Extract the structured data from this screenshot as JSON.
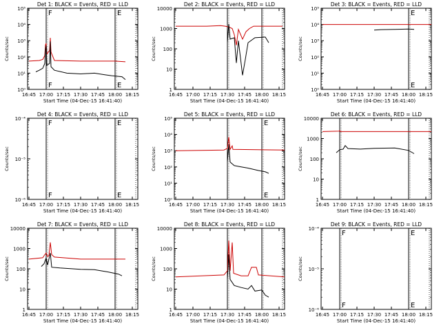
{
  "figure": {
    "xaxis_title": "Start Time (04-Dec-15 16:41:40)",
    "yaxis_title": "Counts/sec",
    "xticks": [
      "16:45",
      "17:00",
      "17:15",
      "17:30",
      "17:45",
      "18:00",
      "18:15"
    ],
    "colors": {
      "events": "#000000",
      "lld": "#cc0000",
      "axis": "#000000"
    }
  },
  "chart_data": [
    {
      "type": "line",
      "title": "Det 1: BLACK = Events, RED = LLD",
      "ylog": true,
      "ylim_exp": [
        0,
        5
      ],
      "yticklabels": [
        "10⁰",
        "10¹",
        "10²",
        "10³",
        "10⁴",
        "10⁵"
      ],
      "xlim": [
        16.73,
        18.33
      ],
      "markers": [
        {
          "x": 17.0,
          "label": "F"
        },
        {
          "x": 18.0,
          "label": "E"
        }
      ],
      "dotted_lines": [
        18.3
      ],
      "series": [
        {
          "color": "red",
          "points": [
            [
              16.75,
              55
            ],
            [
              16.9,
              60
            ],
            [
              16.95,
              70
            ],
            [
              16.98,
              120
            ],
            [
              16.99,
              550
            ],
            [
              17.0,
              700
            ],
            [
              17.01,
              150
            ],
            [
              17.05,
              250
            ],
            [
              17.06,
              1500
            ],
            [
              17.07,
              200
            ],
            [
              17.12,
              60
            ],
            [
              17.5,
              55
            ],
            [
              18.0,
              55
            ],
            [
              18.15,
              50
            ]
          ]
        },
        {
          "color": "black",
          "points": [
            [
              16.85,
              12
            ],
            [
              16.9,
              15
            ],
            [
              16.95,
              20
            ],
            [
              16.98,
              40
            ],
            [
              16.99,
              300
            ],
            [
              17.0,
              500
            ],
            [
              17.01,
              30
            ],
            [
              17.05,
              40
            ],
            [
              17.06,
              900
            ],
            [
              17.07,
              25
            ],
            [
              17.12,
              15
            ],
            [
              17.3,
              10
            ],
            [
              17.5,
              9
            ],
            [
              17.7,
              10
            ],
            [
              17.85,
              8
            ],
            [
              17.95,
              7
            ],
            [
              18.1,
              6
            ],
            [
              18.15,
              4
            ]
          ]
        }
      ]
    },
    {
      "type": "line",
      "title": "Det 2: BLACK = Events, RED = LLD",
      "ylog": true,
      "ylim_exp": [
        0,
        4
      ],
      "yticklabels": [
        "1",
        "10",
        "100",
        "1000",
        "10000"
      ],
      "xlim": [
        16.73,
        18.33
      ],
      "markers": [
        {
          "x": 17.5,
          "label": ""
        },
        {
          "x": 18.0,
          "label": ""
        }
      ],
      "dotted_lines": [
        18.3
      ],
      "series": [
        {
          "color": "red",
          "points": [
            [
              16.75,
              1300
            ],
            [
              17.2,
              1300
            ],
            [
              17.4,
              1400
            ],
            [
              17.47,
              1300
            ],
            [
              17.52,
              1200
            ],
            [
              17.57,
              1000
            ],
            [
              17.6,
              500
            ],
            [
              17.63,
              150
            ],
            [
              17.66,
              900
            ],
            [
              17.72,
              300
            ],
            [
              17.77,
              700
            ],
            [
              17.82,
              1000
            ],
            [
              17.88,
              1300
            ],
            [
              18.3,
              1300
            ]
          ]
        },
        {
          "color": "black",
          "points": [
            [
              17.5,
              200
            ],
            [
              17.52,
              1700
            ],
            [
              17.54,
              300
            ],
            [
              17.6,
              350
            ],
            [
              17.63,
              20
            ],
            [
              17.66,
              250
            ],
            [
              17.72,
              5
            ],
            [
              17.76,
              30
            ],
            [
              17.8,
              200
            ],
            [
              17.9,
              350
            ],
            [
              18.05,
              380
            ],
            [
              18.1,
              200
            ]
          ]
        }
      ]
    },
    {
      "type": "line",
      "title": "Det 3: BLACK = Events, RED = LLD",
      "ylog": true,
      "ylim_exp": [
        0,
        5
      ],
      "yticklabels": [
        "10⁰",
        "10¹",
        "10²",
        "10³",
        "10⁴",
        "10⁵"
      ],
      "xlim": [
        16.73,
        18.33
      ],
      "markers": [
        {
          "x": 18.0,
          "label": "E"
        }
      ],
      "dotted_lines": [
        18.3
      ],
      "series": [
        {
          "color": "red",
          "points": [
            [
              16.75,
              10000
            ],
            [
              18.33,
              10000
            ]
          ]
        },
        {
          "color": "black",
          "points": [
            [
              17.5,
              4500
            ],
            [
              17.6,
              4800
            ],
            [
              17.8,
              5000
            ],
            [
              18.0,
              5200
            ],
            [
              18.08,
              5000
            ]
          ]
        }
      ]
    },
    {
      "type": "line",
      "title": "Det 4: BLACK = Events, RED = LLD",
      "ylog": true,
      "ylim_exp": [
        -6,
        -4
      ],
      "yticklabels": [
        "10⁻⁶",
        "10⁻⁵",
        "10⁻⁴"
      ],
      "xlim": [
        16.73,
        18.33
      ],
      "markers": [
        {
          "x": 17.0,
          "label": "F"
        },
        {
          "x": 18.0,
          "label": "E"
        }
      ],
      "dotted_lines": [
        18.3
      ],
      "series": []
    },
    {
      "type": "line",
      "title": "Det 5: BLACK = Events, RED = LLD",
      "ylog": true,
      "ylim_exp": [
        0,
        5
      ],
      "yticklabels": [
        "10⁰",
        "10¹",
        "10²",
        "10³",
        "10⁴",
        "10⁵"
      ],
      "xlim": [
        16.73,
        18.33
      ],
      "markers": [
        {
          "x": 17.5,
          "label": ""
        },
        {
          "x": 18.0,
          "label": "E"
        }
      ],
      "dotted_lines": [
        18.3
      ],
      "series": [
        {
          "color": "red",
          "points": [
            [
              16.75,
              1000
            ],
            [
              17.45,
              1100
            ],
            [
              17.5,
              1400
            ],
            [
              17.52,
              7000
            ],
            [
              17.54,
              1200
            ],
            [
              17.57,
              2000
            ],
            [
              17.58,
              1200
            ],
            [
              18.33,
              1100
            ]
          ]
        },
        {
          "color": "black",
          "points": [
            [
              17.5,
              200
            ],
            [
              17.52,
              2500
            ],
            [
              17.54,
              200
            ],
            [
              17.6,
              120
            ],
            [
              17.7,
              100
            ],
            [
              17.8,
              85
            ],
            [
              17.95,
              60
            ],
            [
              18.05,
              50
            ],
            [
              18.1,
              40
            ]
          ]
        }
      ]
    },
    {
      "type": "line",
      "title": "Det 6: BLACK = Events, RED = LLD",
      "ylog": true,
      "ylim_exp": [
        0,
        4
      ],
      "yticklabels": [
        "1",
        "10",
        "100",
        "1000",
        "10000"
      ],
      "xlim": [
        16.73,
        18.33
      ],
      "markers": [
        {
          "x": 17.0,
          "label": ""
        },
        {
          "x": 18.0,
          "label": ""
        }
      ],
      "dotted_lines": [
        18.3
      ],
      "series": [
        {
          "color": "red",
          "points": [
            [
              16.75,
              2200
            ],
            [
              16.99,
              2300
            ],
            [
              17.0,
              2500
            ],
            [
              17.01,
              2200
            ],
            [
              18.33,
              2200
            ]
          ]
        },
        {
          "color": "black",
          "points": [
            [
              16.95,
              200
            ],
            [
              17.0,
              280
            ],
            [
              17.05,
              300
            ],
            [
              17.08,
              450
            ],
            [
              17.12,
              320
            ],
            [
              17.3,
              300
            ],
            [
              17.5,
              330
            ],
            [
              17.8,
              340
            ],
            [
              18.0,
              260
            ],
            [
              18.08,
              180
            ]
          ]
        }
      ]
    },
    {
      "type": "line",
      "title": "Det 7: BLACK = Events, RED = LLD",
      "ylog": true,
      "ylim_exp": [
        0,
        4
      ],
      "yticklabels": [
        "1",
        "10",
        "100",
        "1000",
        "10000"
      ],
      "xlim": [
        16.73,
        18.33
      ],
      "markers": [
        {
          "x": 17.0,
          "label": ""
        },
        {
          "x": 18.0,
          "label": ""
        }
      ],
      "dotted_lines": [
        18.3
      ],
      "series": [
        {
          "color": "red",
          "points": [
            [
              16.75,
              300
            ],
            [
              16.95,
              350
            ],
            [
              16.98,
              500
            ],
            [
              17.0,
              600
            ],
            [
              17.02,
              400
            ],
            [
              17.04,
              450
            ],
            [
              17.06,
              2000
            ],
            [
              17.08,
              500
            ],
            [
              17.12,
              380
            ],
            [
              17.5,
              300
            ],
            [
              18.15,
              300
            ]
          ]
        },
        {
          "color": "black",
          "points": [
            [
              16.93,
              130
            ],
            [
              16.97,
              180
            ],
            [
              17.0,
              350
            ],
            [
              17.02,
              150
            ],
            [
              17.06,
              600
            ],
            [
              17.08,
              120
            ],
            [
              17.2,
              110
            ],
            [
              17.5,
              95
            ],
            [
              17.7,
              90
            ],
            [
              17.9,
              70
            ],
            [
              18.05,
              55
            ],
            [
              18.1,
              45
            ]
          ]
        }
      ]
    },
    {
      "type": "line",
      "title": "Det 8: BLACK = Events, RED = LLD",
      "ylog": true,
      "ylim_exp": [
        0,
        4
      ],
      "yticklabels": [
        "1",
        "10",
        "100",
        "1000",
        "10000"
      ],
      "xlim": [
        16.73,
        18.33
      ],
      "markers": [
        {
          "x": 17.5,
          "label": ""
        },
        {
          "x": 18.0,
          "label": ""
        }
      ],
      "dotted_lines": [
        18.3
      ],
      "series": [
        {
          "color": "red",
          "points": [
            [
              16.75,
              40
            ],
            [
              17.45,
              50
            ],
            [
              17.5,
              80
            ],
            [
              17.52,
              2500
            ],
            [
              17.54,
              80
            ],
            [
              17.57,
              2000
            ],
            [
              17.59,
              60
            ],
            [
              17.7,
              45
            ],
            [
              17.8,
              45
            ],
            [
              17.85,
              120
            ],
            [
              17.92,
              120
            ],
            [
              17.95,
              50
            ],
            [
              18.33,
              40
            ]
          ]
        },
        {
          "color": "black",
          "points": [
            [
              17.5,
              30
            ],
            [
              17.52,
              500
            ],
            [
              17.54,
              30
            ],
            [
              17.6,
              15
            ],
            [
              17.7,
              12
            ],
            [
              17.8,
              10
            ],
            [
              17.85,
              15
            ],
            [
              17.9,
              8
            ],
            [
              18.0,
              9
            ],
            [
              18.05,
              5
            ],
            [
              18.1,
              4
            ]
          ]
        }
      ]
    },
    {
      "type": "line",
      "title": "Det 9: BLACK = Events, RED = LLD",
      "ylog": true,
      "ylim_exp": [
        -6,
        -4
      ],
      "yticklabels": [
        "10⁻⁶",
        "10⁻⁵",
        "10⁻⁴"
      ],
      "xlim": [
        16.73,
        18.33
      ],
      "markers": [
        {
          "x": 17.0,
          "label": "F"
        },
        {
          "x": 18.0,
          "label": "E"
        }
      ],
      "dotted_lines": [
        18.3
      ],
      "series": []
    }
  ]
}
